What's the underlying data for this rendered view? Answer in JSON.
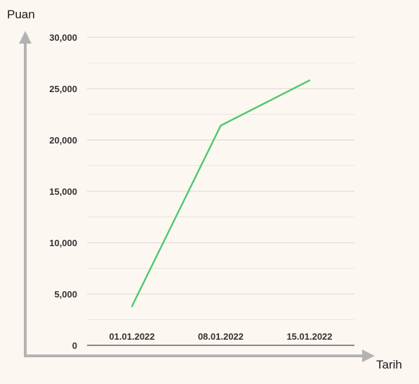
{
  "chart_data": {
    "type": "line",
    "xlabel": "Tarih",
    "ylabel": "Puan",
    "categories": [
      "01.01.2022",
      "08.01.2022",
      "15.01.2022"
    ],
    "series": [
      {
        "values": [
          3800,
          21400,
          25800
        ],
        "color": "#4cc870"
      }
    ],
    "ylim": [
      0,
      30000
    ],
    "y_ticks": [
      "0",
      "5,000",
      "10,000",
      "15,000",
      "20,000",
      "25,000",
      "30,000"
    ],
    "grid": true,
    "colors": {
      "axis": "#b3b3b3",
      "grid": "#dcd6cf",
      "grid_minor": "#ebe5de",
      "baseline": "#444444"
    }
  }
}
